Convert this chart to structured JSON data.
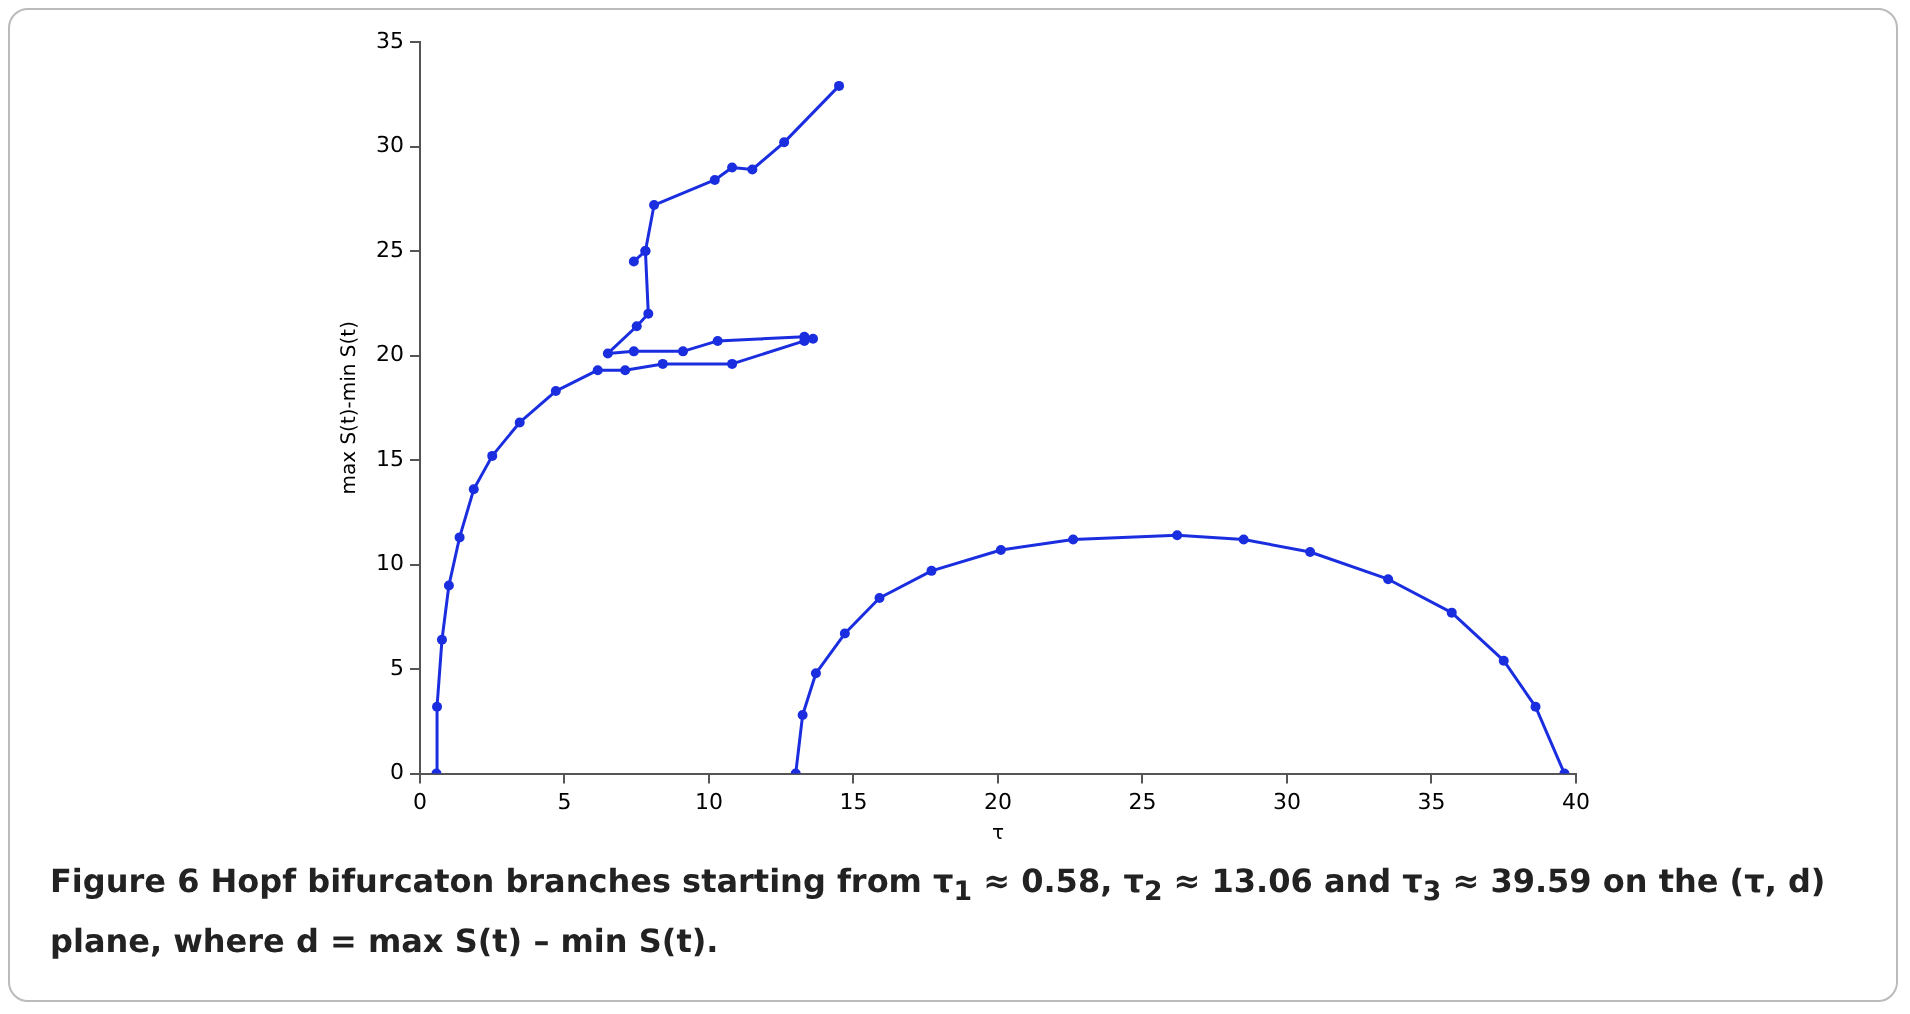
{
  "chart_data": {
    "type": "line",
    "xlabel": "τ",
    "ylabel": "max S(t)-min S(t)",
    "xlim": [
      0,
      40
    ],
    "xticks": [
      0,
      5,
      10,
      15,
      20,
      25,
      30,
      35,
      40
    ],
    "ylim": [
      0,
      35
    ],
    "yticks": [
      0,
      5,
      10,
      15,
      20,
      25,
      30,
      35
    ],
    "grid": false,
    "legend": false,
    "marker": "circle",
    "line_style": "solid",
    "series": [
      {
        "color": "#1a2ee0",
        "x": [
          0.57,
          0.59,
          0.76,
          1.0,
          1.37,
          1.86,
          2.5,
          3.45,
          4.7,
          6.15,
          7.1,
          8.4,
          10.8,
          13.3,
          13.6,
          13.3,
          10.3,
          9.1,
          7.4,
          6.5,
          7.5,
          7.9,
          7.8,
          7.4,
          7.8,
          8.1,
          10.2,
          10.8,
          11.5,
          12.6,
          14.5
        ],
        "values": [
          0,
          3.2,
          6.4,
          9.0,
          11.3,
          13.6,
          15.2,
          16.8,
          18.3,
          19.3,
          19.3,
          19.6,
          19.6,
          20.7,
          20.8,
          20.9,
          20.7,
          20.2,
          20.2,
          20.1,
          21.4,
          22.0,
          25.0,
          24.5,
          25.0,
          27.2,
          28.4,
          29.0,
          28.9,
          30.2,
          32.9
        ]
      },
      {
        "color": "#1a2ee0",
        "x": [
          13.0,
          13.24,
          13.7,
          14.7,
          15.9,
          17.7,
          20.1,
          22.6,
          26.2,
          28.5,
          30.8,
          33.5,
          35.7,
          37.5,
          38.6,
          39.6
        ],
        "values": [
          0,
          2.8,
          4.8,
          6.7,
          8.4,
          9.7,
          10.7,
          11.2,
          11.4,
          11.2,
          10.6,
          9.3,
          7.7,
          5.4,
          3.2,
          0
        ]
      }
    ],
    "annotations": [
      "Figure 6  Hopf bifurcaton branches starting from τ$_{1}$ ≈ 0.58, τ$_{2}$ ≈ 13.06 and τ$_{3}$ ≈ 39.59 on the (τ, d) plane, where d = max S(t) – min S(t)."
    ]
  }
}
